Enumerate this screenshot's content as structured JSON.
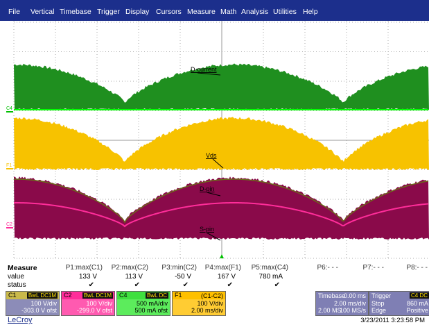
{
  "menu": [
    "File",
    "Vertical",
    "Timebase",
    "Trigger",
    "Display",
    "Cursors",
    "Measure",
    "Math",
    "Analysis",
    "Utilities",
    "Help"
  ],
  "traces": {
    "labels": [
      "D-current",
      "Vds",
      "D-pin",
      "S-pin"
    ],
    "markers": [
      "C4",
      "F1",
      "C2"
    ]
  },
  "measure": {
    "title": "Measure",
    "row_labels": [
      "value",
      "status"
    ],
    "columns": [
      {
        "name": "P1:max(C1)",
        "value": "133 V",
        "status": "✔"
      },
      {
        "name": "P2:max(C2)",
        "value": "113 V",
        "status": "✔"
      },
      {
        "name": "P3:min(C2)",
        "value": "-50 V",
        "status": "✔"
      },
      {
        "name": "P4:max(F1)",
        "value": "167 V",
        "status": "✔"
      },
      {
        "name": "P5:max(C4)",
        "value": "780 mA",
        "status": "✔"
      },
      {
        "name": "P6:- - -"
      },
      {
        "name": "P7:- - -"
      },
      {
        "name": "P8:- - -"
      }
    ]
  },
  "channels": [
    {
      "name": "C1",
      "flags": "BwL DC1M",
      "scale": "100 V/div",
      "offset": "-303.0 V ofst"
    },
    {
      "name": "C2",
      "flags": "BwL DC1M",
      "scale": "100 V/div",
      "offset": "-299.0 V ofst"
    },
    {
      "name": "C4",
      "flags": "BwL DC",
      "scale": "500 mA/div",
      "offset": "500 mA ofst"
    },
    {
      "name": "F1",
      "flags": "(C1-C2)",
      "scale": "100 V/div",
      "offset": "2.00 ms/div"
    }
  ],
  "timebase": {
    "title": "Timebase",
    "delay": "0.00 ms",
    "scale": "2.00 ms/div",
    "samples": "2.00 MS",
    "rate": "100 MS/s"
  },
  "trigger": {
    "title": "Trigger",
    "source": "C4 DC",
    "mode": "Stop",
    "level": "860 mA",
    "type": "Edge",
    "slope": "Positive"
  },
  "footer": {
    "brand": "LeCroy",
    "timestamp": "3/23/2011 3:23:58 PM"
  }
}
